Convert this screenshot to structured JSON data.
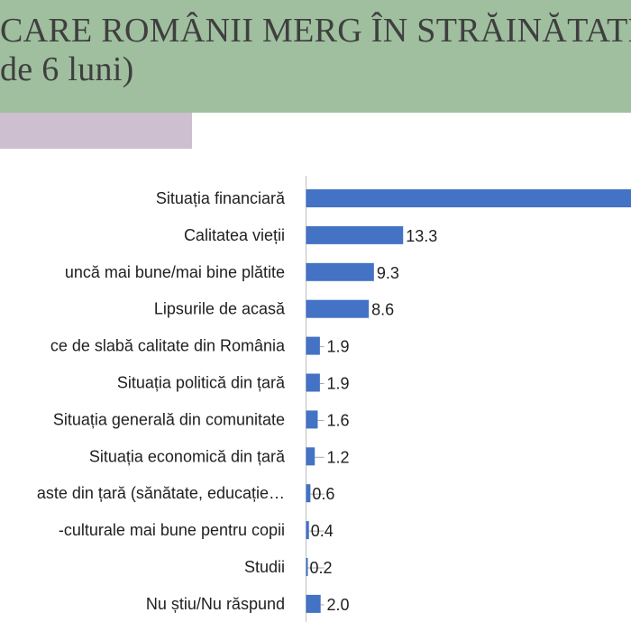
{
  "header": {
    "title_line1": "CARE ROMÂNII MERG ÎN STRĂINĂTATE",
    "title_line2": "de 6 luni)"
  },
  "colors": {
    "header_bg": "#9fbf9f",
    "accent_bar": "#cdbfcf",
    "bar": "#4472c4"
  },
  "chart_data": {
    "type": "bar",
    "orientation": "horizontal",
    "categories": [
      "Situația financiară",
      "Calitatea vieții",
      "uncă mai bune/mai bine plătite",
      "Lipsurile de acasă",
      "ce de slabă calitate din România",
      "Situația politică din țară",
      "Situația generală din comunitate",
      "Situația economică din țară",
      "aste din țară (sănătate, educație…",
      "-culturale mai bune pentru copii",
      "Studii",
      "Nu știu/Nu răspund"
    ],
    "values": [
      null,
      13.3,
      9.3,
      8.6,
      1.9,
      1.9,
      1.6,
      1.2,
      0.6,
      0.4,
      0.2,
      2.0
    ],
    "value_labels": [
      "",
      "13.3",
      "9.3",
      "8.6",
      "1.9",
      "1.9",
      "1.6",
      "1.2",
      "0.6",
      "0.4",
      "0.2",
      "2.0"
    ],
    "bar_shown_past_edge": [
      true,
      false,
      false,
      false,
      false,
      false,
      false,
      false,
      false,
      false,
      false,
      false
    ],
    "grid": false,
    "legend": "none"
  }
}
